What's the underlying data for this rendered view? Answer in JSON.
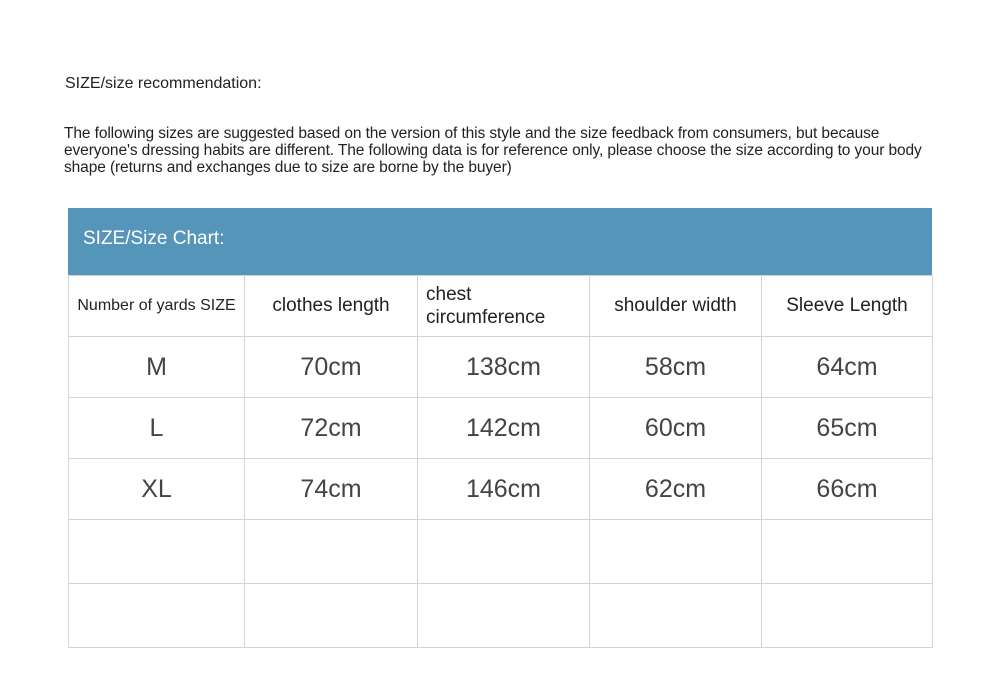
{
  "heading": "SIZE/size recommendation:",
  "intro": "The following sizes are suggested based on the version of this style and the size feedback from consumers, but because everyone's dressing habits are different. The following data is for reference only, please choose the size according to your body shape (returns and exchanges due to size are borne by the buyer)",
  "banner": {
    "title": "SIZE/Size Chart:",
    "color": "#5595ba"
  },
  "table": {
    "headers": [
      "Number of yards SIZE",
      "clothes length",
      "chest circumference",
      "shoulder width",
      "Sleeve Length"
    ],
    "rows": [
      [
        "M",
        "70cm",
        "138cm",
        "58cm",
        "64cm"
      ],
      [
        "L",
        "72cm",
        "142cm",
        "60cm",
        "65cm"
      ],
      [
        "XL",
        "74cm",
        "146cm",
        "62cm",
        "66cm"
      ],
      [
        "",
        "",
        "",
        "",
        ""
      ],
      [
        "",
        "",
        "",
        "",
        ""
      ]
    ]
  }
}
